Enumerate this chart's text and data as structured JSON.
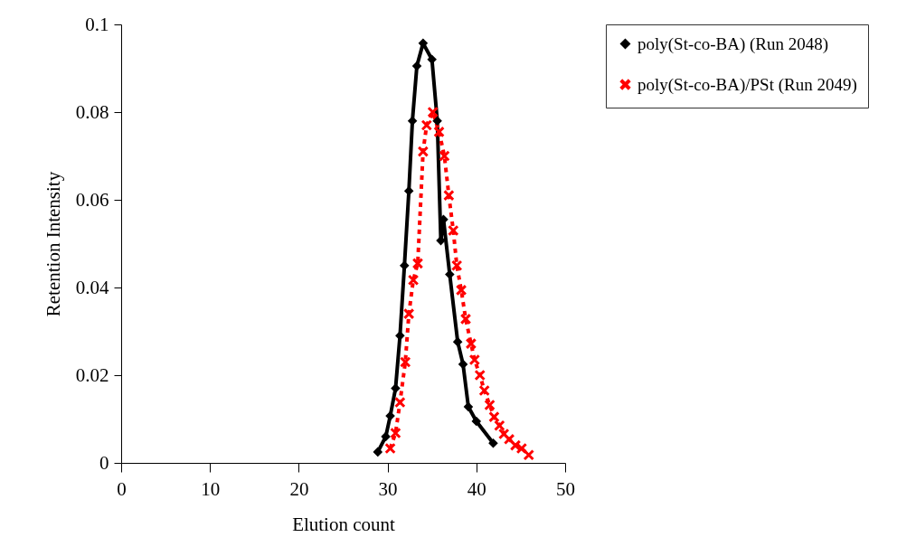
{
  "chart_data": {
    "type": "line",
    "xlabel": "Elution count",
    "ylabel": "Retention Intensity",
    "xlim": [
      0,
      50
    ],
    "xticks": [
      0,
      10,
      20,
      30,
      40,
      50
    ],
    "ylim": [
      0,
      0.1
    ],
    "yticks": [
      0,
      0.02,
      0.04,
      0.06,
      0.08,
      0.1
    ],
    "grid": false,
    "legend": "right",
    "series": [
      {
        "name": "poly(St-co-BA) (Run 2048)",
        "color": "#000000",
        "marker": "diamond",
        "line_style": "solid",
        "x": [
          28.9,
          29.8,
          30.3,
          30.9,
          31.4,
          31.9,
          32.4,
          32.8,
          33.3,
          34.0,
          35.0,
          35.6,
          36.0,
          36.3,
          37.0,
          37.9,
          38.5,
          39.1,
          40.0,
          41.9
        ],
        "values": [
          0.0025,
          0.006,
          0.0107,
          0.017,
          0.029,
          0.045,
          0.062,
          0.078,
          0.0905,
          0.0957,
          0.092,
          0.078,
          0.0507,
          0.0555,
          0.043,
          0.0276,
          0.0225,
          0.0128,
          0.0095,
          0.0045
        ]
      },
      {
        "name": "poly(St-co-BA)/PSt (Run 2049)",
        "color": "#ff0000",
        "marker": "cross",
        "line_style": "dashed",
        "x": [
          30.3,
          30.9,
          31.4,
          32.0,
          32.4,
          32.9,
          33.4,
          34.0,
          34.4,
          35.1,
          35.8,
          36.4,
          36.9,
          37.4,
          37.8,
          38.3,
          38.8,
          39.4,
          39.8,
          40.4,
          40.9,
          41.5,
          42.0,
          42.6,
          43.1,
          43.7,
          44.4,
          45.1,
          45.9
        ],
        "values": [
          0.0033,
          0.0068,
          0.0138,
          0.023,
          0.034,
          0.0417,
          0.0455,
          0.071,
          0.077,
          0.08,
          0.0755,
          0.07,
          0.061,
          0.053,
          0.045,
          0.0394,
          0.0328,
          0.0272,
          0.0235,
          0.02,
          0.0165,
          0.0132,
          0.0105,
          0.0085,
          0.0066,
          0.0054,
          0.004,
          0.0033,
          0.0018
        ]
      }
    ]
  }
}
